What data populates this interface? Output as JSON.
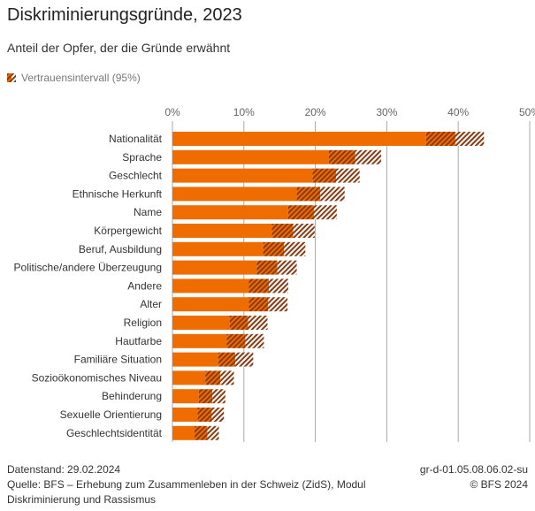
{
  "header": {
    "title": "Diskriminierungsgründe, 2023",
    "subtitle": "Anteil der Opfer, der die Gründe erwähnt"
  },
  "legend": {
    "ci_label": "Vertrauensintervall (95%)"
  },
  "colors": {
    "bar": "#ef6c00",
    "ci_stripe": "#8a3a10"
  },
  "chart_data": {
    "type": "bar",
    "orientation": "horizontal",
    "title": "Diskriminierungsgründe, 2023",
    "subtitle": "Anteil der Opfer, der die Gründe erwähnt",
    "xlim": [
      0,
      50
    ],
    "x_ticks": [
      "0%",
      "10%",
      "20%",
      "30%",
      "40%",
      "50%"
    ],
    "x_tick_values": [
      0,
      10,
      20,
      30,
      40,
      50
    ],
    "grid": true,
    "legend_position": "top-left",
    "categories": [
      "Nationalität",
      "Sprache",
      "Geschlecht",
      "Ethnische Herkunft",
      "Name",
      "Körpergewicht",
      "Beruf, Ausbildung",
      "Politische/andere Überzeugung",
      "Andere",
      "Alter",
      "Religion",
      "Hautfarbe",
      "Familiäre Situation",
      "Sozioökonomisches Niveau",
      "Behinderung",
      "Sexuelle Orientierung",
      "Geschlechtsidentität"
    ],
    "values": [
      39.6,
      25.6,
      22.9,
      20.7,
      19.8,
      16.9,
      15.6,
      14.7,
      13.5,
      13.4,
      10.6,
      10.2,
      8.8,
      6.7,
      5.6,
      5.5,
      4.9
    ],
    "ci_lower": [
      35.5,
      21.9,
      19.6,
      17.4,
      16.2,
      13.9,
      12.7,
      11.8,
      10.7,
      10.7,
      8.0,
      7.6,
      6.4,
      4.6,
      3.7,
      3.5,
      3.1
    ],
    "ci_upper": [
      43.6,
      29.2,
      26.2,
      24.1,
      23.0,
      19.9,
      18.6,
      17.4,
      16.2,
      16.1,
      13.3,
      12.8,
      11.3,
      8.6,
      7.4,
      7.2,
      6.5
    ]
  },
  "footer": {
    "datenstand": "Datenstand: 29.02.2024",
    "quelle": "Quelle: BFS – Erhebung zum Zusammenleben in der Schweiz (ZidS), Modul Diskriminierung und Rassismus",
    "code": "gr-d-01.05.08.06.02-su",
    "copyright": "© BFS 2024"
  }
}
